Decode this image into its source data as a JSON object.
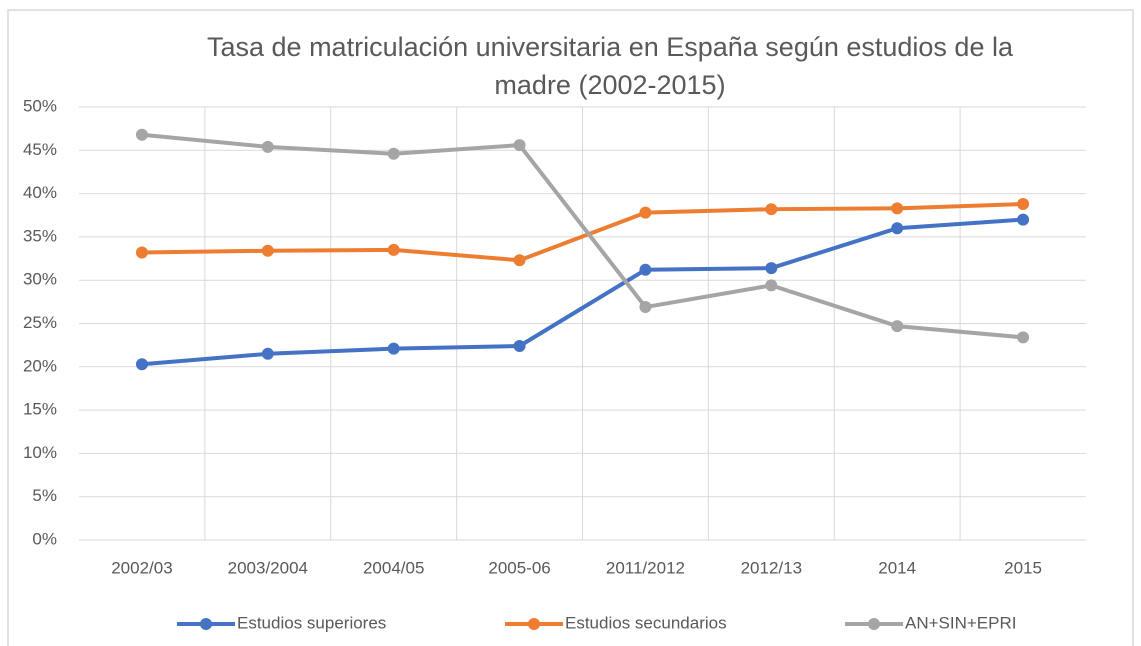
{
  "chart_data": {
    "type": "line",
    "title": "Tasa de matriculación universitaria en España según estudios de la madre (2002-2015)",
    "categories": [
      "2002/03",
      "2003/2004",
      "2004/05",
      "2005-06",
      "2011/2012",
      "2012/13",
      "2014",
      "2015"
    ],
    "series": [
      {
        "name": "Estudios superiores",
        "color": "#4472c4",
        "values": [
          20.3,
          21.5,
          22.1,
          22.4,
          31.2,
          31.4,
          36.0,
          37.0
        ]
      },
      {
        "name": "Estudios secundarios",
        "color": "#ed7d31",
        "values": [
          33.2,
          33.4,
          33.5,
          32.3,
          37.8,
          38.2,
          38.3,
          38.8
        ]
      },
      {
        "name": "AN+SIN+EPRI",
        "color": "#a5a5a5",
        "values": [
          46.8,
          45.4,
          44.6,
          45.6,
          26.9,
          29.4,
          24.7,
          23.4
        ]
      }
    ],
    "ylim": [
      0,
      50
    ],
    "yticks": [
      {
        "value": 0,
        "label": "0%"
      },
      {
        "value": 5,
        "label": "5%"
      },
      {
        "value": 10,
        "label": "10%"
      },
      {
        "value": 15,
        "label": "15%"
      },
      {
        "value": 20,
        "label": "20%"
      },
      {
        "value": 25,
        "label": "25%"
      },
      {
        "value": 30,
        "label": "30%"
      },
      {
        "value": 35,
        "label": "35%"
      },
      {
        "value": 40,
        "label": "40%"
      },
      {
        "value": 45,
        "label": "45%"
      },
      {
        "value": 50,
        "label": "50%"
      }
    ],
    "grid": true,
    "legend": "bottom"
  }
}
